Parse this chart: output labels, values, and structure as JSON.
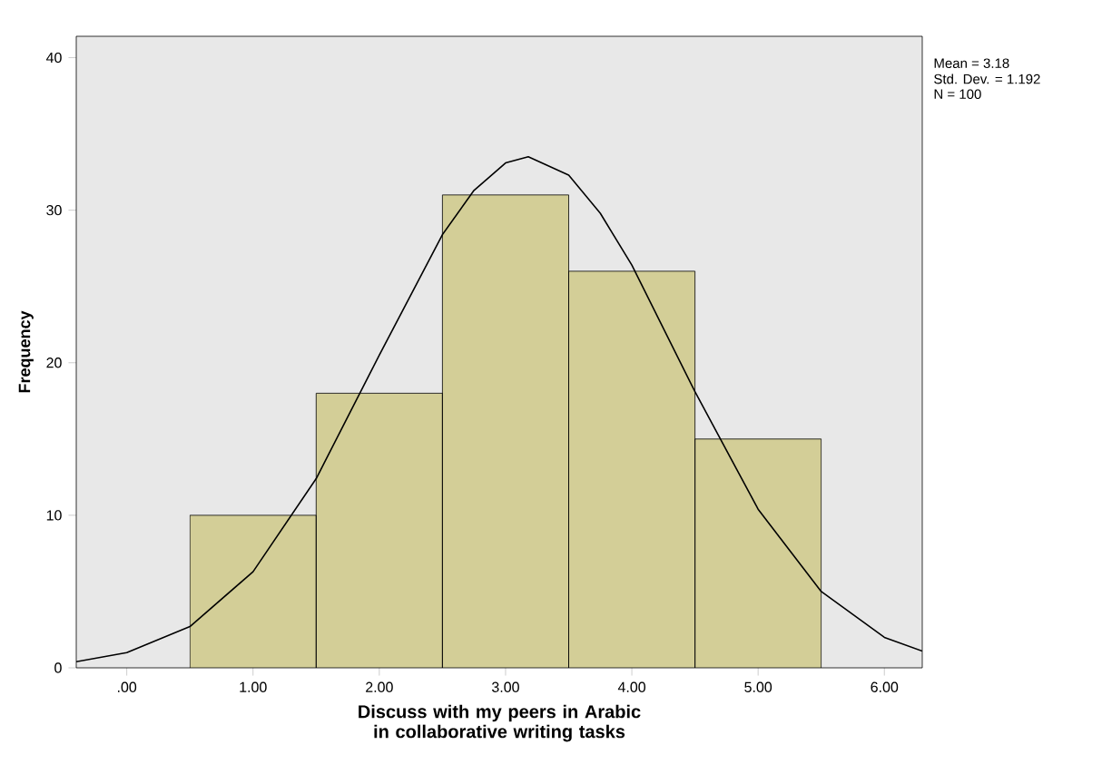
{
  "chart_data": {
    "type": "histogram",
    "xlabel": "Discuss with my peers in Arabic in collaborative writing tasks",
    "ylabel": "Frequency",
    "bins": [
      0.5,
      1.5,
      2.5,
      3.5,
      4.5,
      5.5
    ],
    "values": [
      10,
      18,
      31,
      26,
      15
    ],
    "color": "#d3ce97",
    "series": [
      {
        "type": "line",
        "color": "#000000",
        "x": [
          -0.4,
          0,
          0.5,
          1,
          1.5,
          2,
          2.5,
          2.75,
          3,
          3.18,
          3.5,
          3.75,
          4,
          4.5,
          5,
          5.5,
          6,
          6.3
        ],
        "values": [
          0.4,
          1,
          2.7,
          6.3,
          12.4,
          20.5,
          28.4,
          31.3,
          33.1,
          33.5,
          32.3,
          29.8,
          26.4,
          18.1,
          10.4,
          5,
          2,
          1.1
        ]
      }
    ],
    "xlim": [
      -0.4,
      6.3
    ],
    "ylim": [
      0,
      41.4
    ],
    "xticks": [
      {
        "value": 0,
        "label": ".00"
      },
      {
        "value": 1,
        "label": "1.00"
      },
      {
        "value": 2,
        "label": "2.00"
      },
      {
        "value": 3,
        "label": "3.00"
      },
      {
        "value": 4,
        "label": "4.00"
      },
      {
        "value": 5,
        "label": "5.00"
      },
      {
        "value": 6,
        "label": "6.00"
      }
    ],
    "yticks": [
      0,
      10,
      20,
      30,
      40
    ],
    "annotations": [
      "Mean = 3.18",
      "Std. Dev. = 1.192",
      "N = 100"
    ],
    "grid": false,
    "marker": "none"
  }
}
